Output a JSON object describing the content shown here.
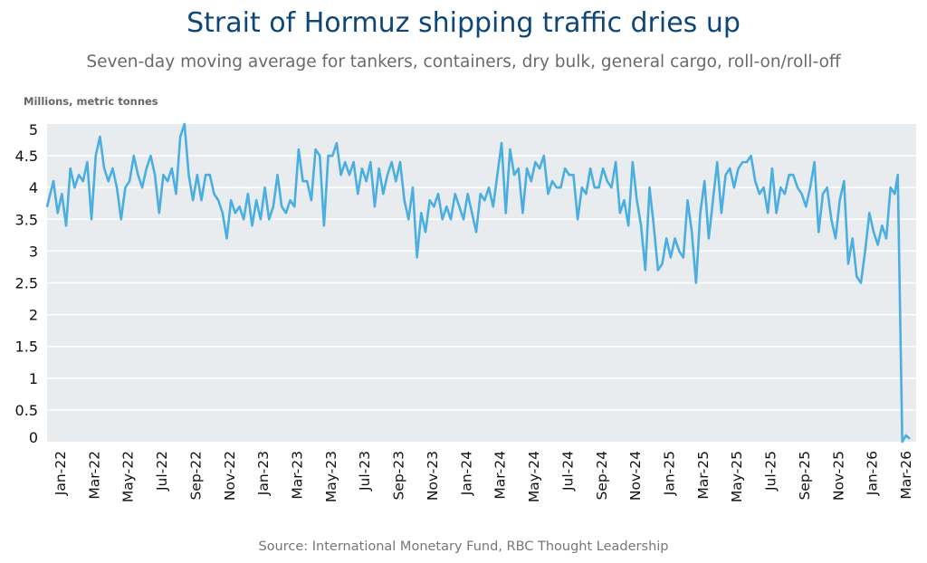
{
  "chart_data": {
    "type": "line",
    "title": "Strait of Hormuz shipping traffic dries up",
    "subtitle": "Seven-day moving average for tankers, containers, dry bulk, general cargo, roll-on/roll-off",
    "ylabel": "Millions, metric tonnes",
    "xlabel": "",
    "source": "Source: International Monetary Fund, RBC Thought Leadership",
    "ylim": [
      0,
      5
    ],
    "yticks": [
      "0",
      "0.5",
      "1",
      "1.5",
      "2",
      "2.5",
      "3",
      "3.5",
      "4",
      "4.5",
      "5"
    ],
    "xticks": [
      "Jan-22",
      "Mar-22",
      "May-22",
      "Jul-22",
      "Sep-22",
      "Nov-22",
      "Jan-23",
      "Mar-23",
      "May-23",
      "Jul-23",
      "Sep-23",
      "Nov-23",
      "Jan-24",
      "Mar-24",
      "May-24",
      "Jul-24",
      "Sep-24",
      "Nov-24",
      "Jan-25",
      "Mar-25",
      "May-25",
      "Jul-25",
      "Sep-25",
      "Nov-25",
      "Jan-26",
      "Mar-26"
    ],
    "grid": true,
    "line_color": "#4aaee0",
    "background_color": "#e9ecef",
    "series": [
      {
        "monthly": [
          {
            "m": "2021-12",
            "v": [
              3.7
            ]
          },
          {
            "m": "2022-01",
            "v": [
              4.1,
              3.6,
              3.9,
              3.4
            ]
          },
          {
            "m": "2022-02",
            "v": [
              4.3,
              4.0,
              4.2,
              4.1
            ]
          },
          {
            "m": "2022-03",
            "v": [
              4.4,
              3.5,
              4.5,
              4.8
            ]
          },
          {
            "m": "2022-04",
            "v": [
              4.3,
              4.1,
              4.3,
              4.0
            ]
          },
          {
            "m": "2022-05",
            "v": [
              3.5,
              4.0,
              4.1,
              4.5
            ]
          },
          {
            "m": "2022-06",
            "v": [
              4.2,
              4.0,
              4.3,
              4.5
            ]
          },
          {
            "m": "2022-07",
            "v": [
              4.2,
              3.6,
              4.2,
              4.1
            ]
          },
          {
            "m": "2022-08",
            "v": [
              4.3,
              3.9,
              4.8,
              5.0
            ]
          },
          {
            "m": "2022-09",
            "v": [
              4.2,
              3.8,
              4.2,
              3.8
            ]
          },
          {
            "m": "2022-10",
            "v": [
              4.2,
              4.2,
              3.9,
              3.8
            ]
          },
          {
            "m": "2022-11",
            "v": [
              3.6,
              3.2,
              3.8,
              3.6
            ]
          },
          {
            "m": "2022-12",
            "v": [
              3.7,
              3.5,
              3.9,
              3.4
            ]
          },
          {
            "m": "2023-01",
            "v": [
              3.8,
              3.5,
              4.0,
              3.5
            ]
          },
          {
            "m": "2023-02",
            "v": [
              3.7,
              4.2,
              3.7,
              3.6
            ]
          },
          {
            "m": "2023-03",
            "v": [
              3.8,
              3.7,
              4.6,
              4.1
            ]
          },
          {
            "m": "2023-04",
            "v": [
              4.1,
              3.8,
              4.6,
              4.5
            ]
          },
          {
            "m": "2023-05",
            "v": [
              3.4,
              4.5,
              4.5,
              4.7
            ]
          },
          {
            "m": "2023-06",
            "v": [
              4.2,
              4.4,
              4.2,
              4.4
            ]
          },
          {
            "m": "2023-07",
            "v": [
              3.9,
              4.3,
              4.1,
              4.4
            ]
          },
          {
            "m": "2023-08",
            "v": [
              3.7,
              4.3,
              3.9,
              4.2
            ]
          },
          {
            "m": "2023-09",
            "v": [
              4.4,
              4.1,
              4.4,
              3.8
            ]
          },
          {
            "m": "2023-10",
            "v": [
              3.5,
              4.0,
              2.9,
              3.6
            ]
          },
          {
            "m": "2023-11",
            "v": [
              3.3,
              3.8,
              3.7,
              3.9
            ]
          },
          {
            "m": "2023-12",
            "v": [
              3.5,
              3.7,
              3.5,
              3.9
            ]
          },
          {
            "m": "2024-01",
            "v": [
              3.7,
              3.5,
              3.9,
              3.6
            ]
          },
          {
            "m": "2024-02",
            "v": [
              3.3,
              3.9,
              3.8,
              4.0
            ]
          },
          {
            "m": "2024-03",
            "v": [
              3.7,
              4.2,
              4.7,
              3.6
            ]
          },
          {
            "m": "2024-04",
            "v": [
              4.6,
              4.2,
              4.3,
              3.6
            ]
          },
          {
            "m": "2024-05",
            "v": [
              4.3,
              4.1,
              4.4,
              4.3
            ]
          },
          {
            "m": "2024-06",
            "v": [
              4.5,
              3.9,
              4.1,
              4.0
            ]
          },
          {
            "m": "2024-07",
            "v": [
              4.0,
              4.3,
              4.2,
              4.2
            ]
          },
          {
            "m": "2024-08",
            "v": [
              3.5,
              4.0,
              3.9,
              4.3
            ]
          },
          {
            "m": "2024-09",
            "v": [
              4.0,
              4.0,
              4.3,
              4.1
            ]
          },
          {
            "m": "2024-10",
            "v": [
              4.0,
              4.4,
              3.6,
              3.8
            ]
          },
          {
            "m": "2024-11",
            "v": [
              3.4,
              4.4,
              3.8,
              3.4
            ]
          },
          {
            "m": "2024-12",
            "v": [
              2.7,
              4.0,
              3.4,
              2.7
            ]
          },
          {
            "m": "2025-01",
            "v": [
              2.8,
              3.2,
              2.9,
              3.2
            ]
          },
          {
            "m": "2025-02",
            "v": [
              3.0,
              2.9,
              3.8,
              3.3
            ]
          },
          {
            "m": "2025-03",
            "v": [
              2.5,
              3.6,
              4.1,
              3.2
            ]
          },
          {
            "m": "2025-04",
            "v": [
              3.8,
              4.4,
              3.6,
              4.2
            ]
          },
          {
            "m": "2025-05",
            "v": [
              4.3,
              4.0,
              4.3,
              4.4
            ]
          },
          {
            "m": "2025-06",
            "v": [
              4.4,
              4.5,
              4.1,
              3.9
            ]
          },
          {
            "m": "2025-07",
            "v": [
              4.0,
              3.6,
              4.3,
              3.6
            ]
          },
          {
            "m": "2025-08",
            "v": [
              4.0,
              3.9,
              4.2,
              4.2
            ]
          },
          {
            "m": "2025-09",
            "v": [
              4.0,
              3.9,
              3.7,
              4.0
            ]
          },
          {
            "m": "2025-10",
            "v": [
              4.4,
              3.3,
              3.9,
              4.0
            ]
          },
          {
            "m": "2025-11",
            "v": [
              3.5,
              3.2,
              3.8,
              4.1
            ]
          },
          {
            "m": "2025-12",
            "v": [
              2.8,
              3.2,
              2.6,
              2.5
            ]
          },
          {
            "m": "2026-01",
            "v": [
              3.0,
              3.6,
              3.3,
              3.1
            ]
          },
          {
            "m": "2026-02",
            "v": [
              3.4,
              3.2,
              4.0,
              3.9
            ]
          },
          {
            "m": "2026-03",
            "v": [
              4.2,
              0.0,
              0.1,
              0.05
            ]
          }
        ]
      }
    ]
  }
}
